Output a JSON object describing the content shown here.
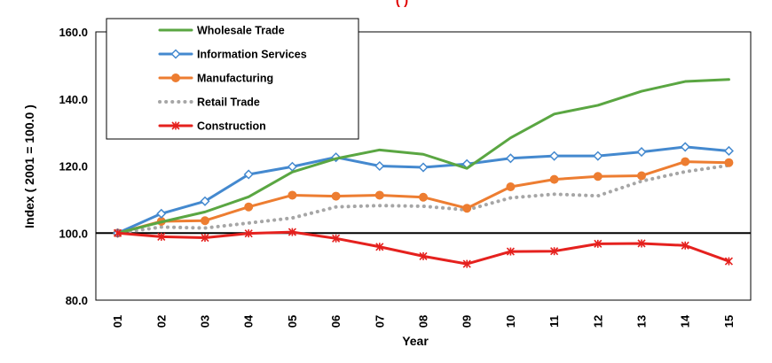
{
  "chart_data": {
    "type": "line",
    "title": "",
    "top_title_fragment": "(                                        )",
    "xlabel": "Year",
    "ylabel": "Index ( 2001 = 100.0 )",
    "x": [
      "01",
      "02",
      "03",
      "04",
      "05",
      "06",
      "07",
      "08",
      "09",
      "10",
      "11",
      "12",
      "13",
      "14",
      "15"
    ],
    "ylim": [
      80,
      160
    ],
    "yticks": [
      "80.0",
      "100.0",
      "120.0",
      "140.0",
      "160.0"
    ],
    "reference_line": 100,
    "grid": false,
    "legend_position": "top-left",
    "series": [
      {
        "name": "Wholesale Trade",
        "color": "#5aa642",
        "marker": "none",
        "dash": "solid",
        "values": [
          100.0,
          103.3,
          106.3,
          110.8,
          118.2,
          122.2,
          124.8,
          123.5,
          119.3,
          128.4,
          135.5,
          138.1,
          142.3,
          145.2,
          145.8
        ]
      },
      {
        "name": "Information Services",
        "color": "#4489cf",
        "marker": "diamond",
        "dash": "solid",
        "values": [
          100.0,
          105.8,
          109.5,
          117.5,
          119.8,
          122.6,
          120.0,
          119.6,
          120.6,
          122.3,
          123.0,
          123.0,
          124.2,
          125.7,
          124.5
        ]
      },
      {
        "name": "Manufacturing",
        "color": "#ed7d31",
        "marker": "circle",
        "dash": "solid",
        "values": [
          100.0,
          103.5,
          103.7,
          107.8,
          111.3,
          111.0,
          111.3,
          110.7,
          107.4,
          113.8,
          116.0,
          116.9,
          117.1,
          121.3,
          121.0
        ]
      },
      {
        "name": "Retail Trade",
        "color": "#a6a6a6",
        "marker": "none",
        "dash": "dotted",
        "values": [
          100.0,
          101.8,
          101.5,
          103.0,
          104.5,
          107.8,
          108.2,
          108.0,
          106.9,
          110.5,
          111.6,
          111.1,
          115.5,
          118.3,
          120.2
        ]
      },
      {
        "name": "Construction",
        "color": "#e5211e",
        "marker": "x",
        "dash": "solid",
        "values": [
          100.0,
          98.9,
          98.6,
          99.9,
          100.3,
          98.4,
          95.9,
          93.1,
          90.8,
          94.5,
          94.6,
          96.8,
          96.9,
          96.3,
          91.6
        ]
      }
    ]
  }
}
